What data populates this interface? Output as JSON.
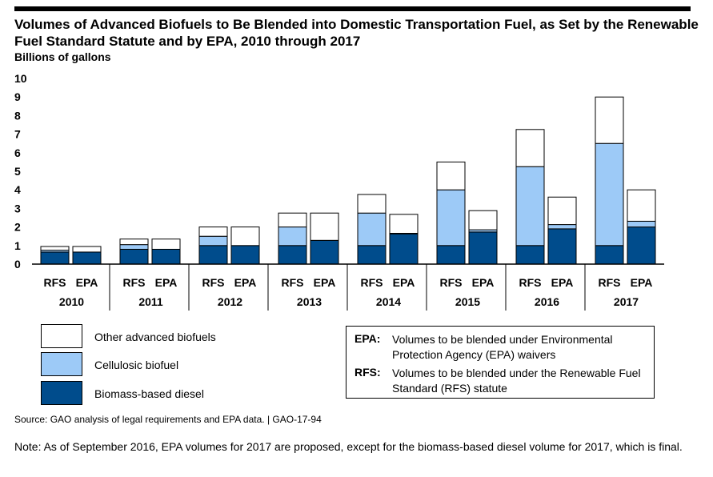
{
  "title": "Volumes of Advanced Biofuels to Be Blended into Domestic Transportation Fuel, as Set by the Renewable Fuel Standard Statute and by EPA, 2010 through 2017",
  "y_unit_label": "Billions of gallons",
  "legend": [
    {
      "label": "Other advanced biofuels",
      "color": "#ffffff"
    },
    {
      "label": "Cellulosic biofuel",
      "color": "#9dcaf7"
    },
    {
      "label": "Biomass-based diesel",
      "color": "#004c8c"
    }
  ],
  "abbreviations": [
    {
      "key": "EPA:",
      "text": "Volumes to be blended under Environmental Protection Agency (EPA) waivers"
    },
    {
      "key": "RFS:",
      "text": "Volumes to be blended under the Renewable Fuel Standard (RFS) statute"
    }
  ],
  "source": "Source: GAO analysis of legal requirements and EPA data.  |  GAO-17-94",
  "note": "Note: As of September 2016, EPA volumes for 2017 are proposed, except for the biomass-based diesel volume for 2017, which is final.",
  "chart_data": {
    "type": "bar",
    "stacked": true,
    "ylim": [
      0,
      10
    ],
    "yticks": [
      0,
      1,
      2,
      3,
      4,
      5,
      6,
      7,
      8,
      9,
      10
    ],
    "groups": [
      "2010",
      "2011",
      "2012",
      "2013",
      "2014",
      "2015",
      "2016",
      "2017"
    ],
    "bar_labels": [
      "RFS",
      "EPA"
    ],
    "series": [
      {
        "name": "Biomass-based diesel",
        "color": "#004c8c",
        "values": [
          [
            0.65,
            0.65
          ],
          [
            0.8,
            0.8
          ],
          [
            1.0,
            1.0
          ],
          [
            1.0,
            1.28
          ],
          [
            1.0,
            1.63
          ],
          [
            1.0,
            1.73
          ],
          [
            1.0,
            1.9
          ],
          [
            1.0,
            2.0
          ]
        ]
      },
      {
        "name": "Cellulosic biofuel",
        "color": "#9dcaf7",
        "values": [
          [
            0.1,
            0.0
          ],
          [
            0.25,
            0.0
          ],
          [
            0.5,
            0.0
          ],
          [
            1.0,
            0.0
          ],
          [
            1.75,
            0.03
          ],
          [
            3.0,
            0.12
          ],
          [
            4.25,
            0.23
          ],
          [
            5.5,
            0.31
          ]
        ]
      },
      {
        "name": "Other advanced biofuels",
        "color": "#ffffff",
        "values": [
          [
            0.2,
            0.3
          ],
          [
            0.3,
            0.55
          ],
          [
            0.5,
            1.0
          ],
          [
            0.75,
            1.47
          ],
          [
            1.0,
            1.02
          ],
          [
            1.5,
            1.03
          ],
          [
            2.0,
            1.48
          ],
          [
            2.5,
            1.69
          ]
        ]
      }
    ]
  }
}
